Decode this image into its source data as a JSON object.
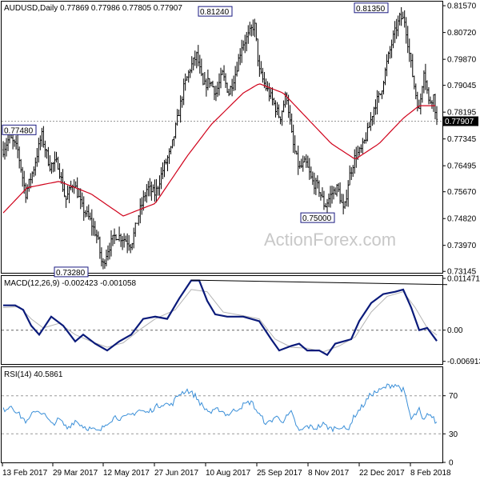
{
  "colors": {
    "background": "#ffffff",
    "candles": "#000000",
    "moving_average": "#d0021b",
    "macd_line": "#0a1a7a",
    "macd_signal": "#b4b4b4",
    "rsi": "#3a8fd8",
    "label_box_border": "#1a1a80",
    "current_price_box": "#000000"
  },
  "watermark": "ActionForex.com",
  "chart_data": [
    {
      "type": "candlestick",
      "panel": "price",
      "title": "AUDUSD,Daily  0.77869 0.77986 0.77805 0.77907",
      "ylim": [
        0.731,
        0.817
      ],
      "y_ticks": [
        "0.81570",
        "0.80720",
        "0.79870",
        "0.79045",
        "0.78195",
        "0.77345",
        "0.76495",
        "0.75670",
        "0.74820",
        "0.73970",
        "0.73145"
      ],
      "current_price": "0.77907",
      "annotations": [
        {
          "label": "0.73280",
          "value": 0.7328
        },
        {
          "label": "0.77480",
          "value": 0.7748
        },
        {
          "label": "0.81240",
          "value": 0.8124
        },
        {
          "label": "0.75000",
          "value": 0.75
        },
        {
          "label": "0.81350",
          "value": 0.8135
        }
      ],
      "overlay": {
        "type": "moving_average"
      },
      "x_ticks": [
        "13 Feb 2017",
        "29 Mar 2017",
        "12 May 2017",
        "27 Jun 2017",
        "10 Aug 2017",
        "25 Sep 2017",
        "8 Nov 2017",
        "22 Dec 2017",
        "8 Feb 2018"
      ],
      "price_path": [
        [
          0,
          0.77
        ],
        [
          8,
          0.774
        ],
        [
          18,
          0.77
        ],
        [
          28,
          0.756
        ],
        [
          38,
          0.764
        ],
        [
          48,
          0.7748
        ],
        [
          58,
          0.765
        ],
        [
          68,
          0.766
        ],
        [
          78,
          0.754
        ],
        [
          88,
          0.76
        ],
        [
          98,
          0.752
        ],
        [
          108,
          0.748
        ],
        [
          118,
          0.742
        ],
        [
          124,
          0.7328
        ],
        [
          130,
          0.738
        ],
        [
          140,
          0.743
        ],
        [
          150,
          0.742
        ],
        [
          160,
          0.74
        ],
        [
          170,
          0.75
        ],
        [
          180,
          0.758
        ],
        [
          190,
          0.756
        ],
        [
          200,
          0.764
        ],
        [
          210,
          0.77
        ],
        [
          218,
          0.78
        ],
        [
          226,
          0.79
        ],
        [
          234,
          0.796
        ],
        [
          242,
          0.8
        ],
        [
          250,
          0.79
        ],
        [
          258,
          0.792
        ],
        [
          266,
          0.788
        ],
        [
          274,
          0.794
        ],
        [
          282,
          0.788
        ],
        [
          290,
          0.794
        ],
        [
          298,
          0.803
        ],
        [
          306,
          0.806
        ],
        [
          314,
          0.81
        ],
        [
          320,
          0.795
        ],
        [
          328,
          0.79
        ],
        [
          336,
          0.786
        ],
        [
          346,
          0.78
        ],
        [
          354,
          0.788
        ],
        [
          362,
          0.772
        ],
        [
          370,
          0.764
        ],
        [
          378,
          0.766
        ],
        [
          386,
          0.76
        ],
        [
          394,
          0.758
        ],
        [
          402,
          0.752
        ],
        [
          410,
          0.756
        ],
        [
          418,
          0.758
        ],
        [
          426,
          0.75
        ],
        [
          432,
          0.761
        ],
        [
          440,
          0.768
        ],
        [
          448,
          0.77
        ],
        [
          456,
          0.776
        ],
        [
          464,
          0.784
        ],
        [
          472,
          0.788
        ],
        [
          480,
          0.798
        ],
        [
          488,
          0.806
        ],
        [
          496,
          0.812
        ],
        [
          502,
          0.811
        ],
        [
          508,
          0.8
        ],
        [
          514,
          0.79
        ],
        [
          520,
          0.782
        ],
        [
          526,
          0.796
        ],
        [
          532,
          0.785
        ],
        [
          538,
          0.787
        ],
        [
          542,
          0.7791
        ]
      ],
      "ma_path": [
        [
          0,
          0.75
        ],
        [
          30,
          0.758
        ],
        [
          70,
          0.76
        ],
        [
          110,
          0.756
        ],
        [
          150,
          0.749
        ],
        [
          190,
          0.753
        ],
        [
          230,
          0.768
        ],
        [
          260,
          0.778
        ],
        [
          300,
          0.788
        ],
        [
          320,
          0.791
        ],
        [
          350,
          0.788
        ],
        [
          380,
          0.78
        ],
        [
          410,
          0.772
        ],
        [
          440,
          0.767
        ],
        [
          470,
          0.772
        ],
        [
          500,
          0.78
        ],
        [
          520,
          0.784
        ],
        [
          542,
          0.784
        ]
      ]
    },
    {
      "type": "line",
      "panel": "macd",
      "title": "MACD(12,26,9) -0.002423 -0.001058",
      "ylim": [
        -0.0075,
        0.012
      ],
      "y_ticks": [
        "0.011471",
        "0.00",
        "-0.006913"
      ],
      "zero_line": true,
      "series": [
        {
          "key": "macd",
          "points": [
            [
              0,
              0.0055
            ],
            [
              15,
              0.0055
            ],
            [
              25,
              0.0045
            ],
            [
              35,
              0.001
            ],
            [
              45,
              -0.001
            ],
            [
              60,
              0.003
            ],
            [
              75,
              0.001
            ],
            [
              90,
              -0.0025
            ],
            [
              100,
              -0.001
            ],
            [
              115,
              -0.003
            ],
            [
              130,
              -0.0045
            ],
            [
              145,
              -0.0025
            ],
            [
              160,
              -0.001
            ],
            [
              175,
              0.0025
            ],
            [
              190,
              0.003
            ],
            [
              205,
              0.0025
            ],
            [
              220,
              0.007
            ],
            [
              235,
              0.011
            ],
            [
              245,
              0.011
            ],
            [
              255,
              0.0065
            ],
            [
              265,
              0.0035
            ],
            [
              280,
              0.003
            ],
            [
              300,
              0.003
            ],
            [
              320,
              0.002
            ],
            [
              335,
              -0.002
            ],
            [
              345,
              -0.0045
            ],
            [
              360,
              -0.0035
            ],
            [
              370,
              -0.003
            ],
            [
              380,
              -0.0045
            ],
            [
              395,
              -0.0045
            ],
            [
              405,
              -0.0055
            ],
            [
              415,
              -0.003
            ],
            [
              425,
              -0.0025
            ],
            [
              435,
              -0.002
            ],
            [
              445,
              0.002
            ],
            [
              460,
              0.006
            ],
            [
              475,
              0.008
            ],
            [
              490,
              0.0085
            ],
            [
              500,
              0.009
            ],
            [
              510,
              0.005
            ],
            [
              520,
              0.0
            ],
            [
              530,
              0.0005
            ],
            [
              542,
              -0.0024
            ]
          ]
        },
        {
          "key": "signal",
          "points": [
            [
              0,
              0.005
            ],
            [
              20,
              0.0052
            ],
            [
              35,
              0.0025
            ],
            [
              50,
              0.0005
            ],
            [
              70,
              0.0015
            ],
            [
              90,
              -0.001
            ],
            [
              110,
              -0.0025
            ],
            [
              130,
              -0.0038
            ],
            [
              150,
              -0.0028
            ],
            [
              170,
              0.0
            ],
            [
              190,
              0.0025
            ],
            [
              215,
              0.0045
            ],
            [
              235,
              0.009
            ],
            [
              255,
              0.0085
            ],
            [
              275,
              0.004
            ],
            [
              300,
              0.0032
            ],
            [
              320,
              0.0025
            ],
            [
              340,
              -0.002
            ],
            [
              360,
              -0.0038
            ],
            [
              380,
              -0.004
            ],
            [
              400,
              -0.0048
            ],
            [
              420,
              -0.0035
            ],
            [
              440,
              -0.0015
            ],
            [
              460,
              0.004
            ],
            [
              480,
              0.0075
            ],
            [
              500,
              0.0085
            ],
            [
              515,
              0.005
            ],
            [
              530,
              0.0005
            ],
            [
              542,
              -0.0011
            ]
          ]
        }
      ],
      "trendline": {
        "from": [
          235,
          0.0111
        ],
        "to": [
          555,
          0.0101
        ]
      }
    },
    {
      "type": "line",
      "panel": "rsi",
      "title": "RSI(14) 40.5861",
      "ylim": [
        0,
        100
      ],
      "y_ticks": [
        "70",
        "30",
        "0"
      ],
      "levels": [
        70,
        30
      ],
      "series": [
        {
          "key": "rsi",
          "points": [
            [
              0,
              55
            ],
            [
              10,
              60
            ],
            [
              20,
              50
            ],
            [
              30,
              42
            ],
            [
              40,
              55
            ],
            [
              50,
              52
            ],
            [
              60,
              40
            ],
            [
              70,
              45
            ],
            [
              80,
              36
            ],
            [
              90,
              44
            ],
            [
              100,
              38
            ],
            [
              110,
              35
            ],
            [
              120,
              32
            ],
            [
              130,
              42
            ],
            [
              140,
              48
            ],
            [
              150,
              46
            ],
            [
              160,
              50
            ],
            [
              170,
              55
            ],
            [
              180,
              52
            ],
            [
              190,
              58
            ],
            [
              200,
              62
            ],
            [
              210,
              60
            ],
            [
              220,
              72
            ],
            [
              230,
              76
            ],
            [
              240,
              70
            ],
            [
              250,
              58
            ],
            [
              260,
              52
            ],
            [
              270,
              56
            ],
            [
              280,
              50
            ],
            [
              290,
              55
            ],
            [
              300,
              60
            ],
            [
              310,
              64
            ],
            [
              320,
              50
            ],
            [
              330,
              40
            ],
            [
              340,
              48
            ],
            [
              350,
              44
            ],
            [
              360,
              52
            ],
            [
              370,
              32
            ],
            [
              380,
              38
            ],
            [
              390,
              36
            ],
            [
              400,
              40
            ],
            [
              410,
              35
            ],
            [
              420,
              38
            ],
            [
              430,
              34
            ],
            [
              440,
              50
            ],
            [
              450,
              60
            ],
            [
              460,
              72
            ],
            [
              470,
              75
            ],
            [
              480,
              80
            ],
            [
              490,
              82
            ],
            [
              500,
              76
            ],
            [
              505,
              62
            ],
            [
              510,
              45
            ],
            [
              520,
              55
            ],
            [
              525,
              42
            ],
            [
              532,
              52
            ],
            [
              542,
              41
            ]
          ]
        }
      ]
    }
  ]
}
